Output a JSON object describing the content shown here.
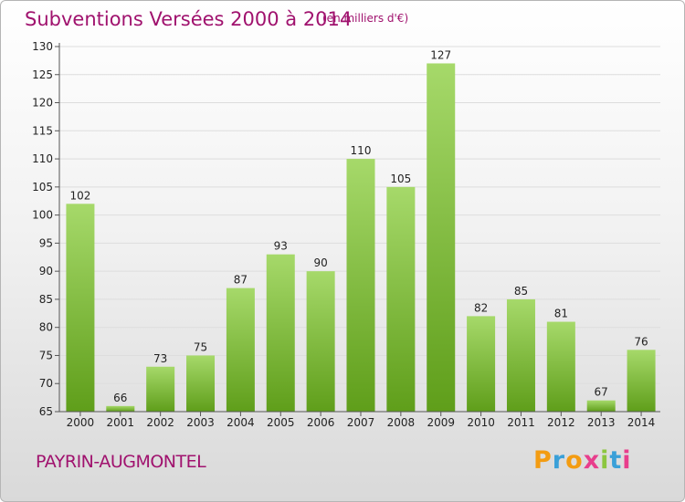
{
  "page": {
    "title": "Subventions Versées 2000 à 2014",
    "subtitle": "(en milliers d'€)",
    "commune": "PAYRIN-AUGMONTEL",
    "logo_text": "Proxiti"
  },
  "colors": {
    "title": "#a0126e",
    "bar_light": "#a6d96a",
    "bar_dark": "#5f9e1a",
    "grid": "#dddddd",
    "logo_letters": [
      "#f39c12",
      "#3aa0d8",
      "#f39c12",
      "#e83e8c",
      "#8cc63f",
      "#3aa0d8",
      "#e83e8c"
    ]
  },
  "chart_data": {
    "type": "bar",
    "title": "Subventions Versées 2000 à 2014",
    "subtitle": "(en milliers d'€)",
    "xlabel": "",
    "ylabel": "",
    "categories": [
      "2000",
      "2001",
      "2002",
      "2003",
      "2004",
      "2005",
      "2006",
      "2007",
      "2008",
      "2009",
      "2010",
      "2011",
      "2012",
      "2013",
      "2014"
    ],
    "values": [
      102,
      66,
      73,
      75,
      87,
      93,
      90,
      110,
      105,
      127,
      82,
      85,
      81,
      67,
      76
    ],
    "ylim": [
      65,
      130
    ],
    "yticks": [
      65,
      70,
      75,
      80,
      85,
      90,
      95,
      100,
      105,
      110,
      115,
      120,
      125,
      130
    ],
    "grid": true,
    "legend": "none"
  }
}
